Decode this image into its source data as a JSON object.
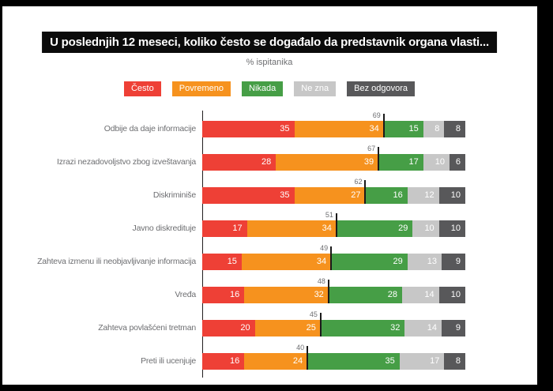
{
  "title": "U poslednjih 12 meseci, koliko često se događalo da predstavnik organa vlasti...",
  "subtitle": "% ispitanika",
  "palette": {
    "cesto": "#ee4036",
    "povremeno": "#f6921e",
    "nikada": "#469e46",
    "ne_zna": "#c7c7c7",
    "bez_odgovora": "#58585a",
    "banner_bg": "#0b0b0b",
    "muted_text": "#6d6e71"
  },
  "chart_data": {
    "type": "bar",
    "orientation": "horizontal",
    "stacked": true,
    "unit": "% ispitanika",
    "xlim": [
      0,
      100
    ],
    "legend_position": "top",
    "categories": [
      "Odbije da daje informacije",
      "Izrazi nezadovoljstvo zbog izveštavanja",
      "Diskriminiše",
      "Javno diskredituje",
      "Zahteva izmenu ili neobjavljivanje informacija",
      "Vređa",
      "Zahteva povlašćeni tretman",
      "Preti ili ucenjuje"
    ],
    "series": [
      {
        "name": "Često",
        "color": "#ee4036",
        "values": [
          35,
          28,
          35,
          17,
          15,
          16,
          20,
          16
        ]
      },
      {
        "name": "Povremeno",
        "color": "#f6921e",
        "values": [
          34,
          39,
          27,
          34,
          34,
          32,
          25,
          24
        ]
      },
      {
        "name": "Nikada",
        "color": "#469e46",
        "values": [
          15,
          17,
          16,
          29,
          29,
          28,
          32,
          35
        ]
      },
      {
        "name": "Ne zna",
        "color": "#c7c7c7",
        "values": [
          8,
          10,
          12,
          10,
          13,
          14,
          14,
          17
        ]
      },
      {
        "name": "Bez odgovora",
        "color": "#58585a",
        "values": [
          8,
          6,
          10,
          10,
          9,
          10,
          9,
          8
        ]
      }
    ],
    "cumulative_markers": {
      "description": "Često + Povremeno total shown above tick line",
      "values": [
        69,
        67,
        62,
        51,
        49,
        48,
        45,
        40
      ]
    }
  }
}
